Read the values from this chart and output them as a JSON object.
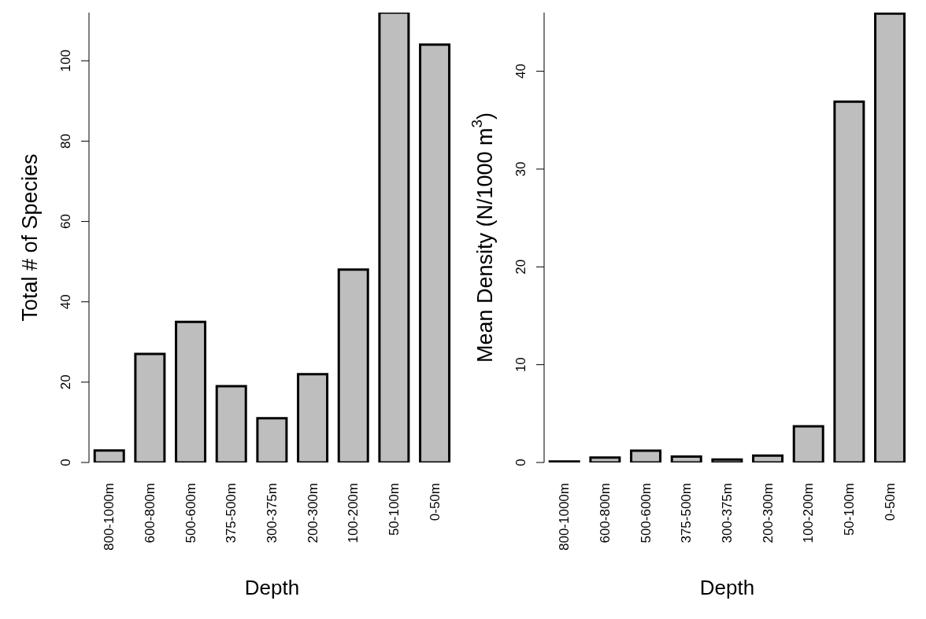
{
  "chart_data": [
    {
      "type": "bar",
      "categories": [
        "800-1000m",
        "600-800m",
        "500-600m",
        "375-500m",
        "300-375m",
        "200-300m",
        "100-200m",
        "50-100m",
        "0-50m"
      ],
      "values": [
        3,
        27,
        35,
        19,
        11,
        22,
        48,
        112,
        104
      ],
      "color": "#bebebe",
      "xlabel": "Depth",
      "ylabel": "Total # of Species",
      "ylim": [
        0,
        112
      ],
      "yticks": [
        0,
        20,
        40,
        60,
        80,
        100
      ]
    },
    {
      "type": "bar",
      "categories": [
        "800-1000m",
        "600-800m",
        "500-600m",
        "375-500m",
        "300-375m",
        "200-300m",
        "100-200m",
        "50-100m",
        "0-50m"
      ],
      "values": [
        0.1,
        0.5,
        1.2,
        0.6,
        0.3,
        0.7,
        3.7,
        36.9,
        45.9
      ],
      "color": "#bebebe",
      "xlabel": "Depth",
      "ylabel": "Mean Density (N/1000 m$^{3}$)",
      "ylim": [
        0,
        46
      ],
      "yticks": [
        0,
        10,
        20,
        30,
        40
      ]
    }
  ]
}
